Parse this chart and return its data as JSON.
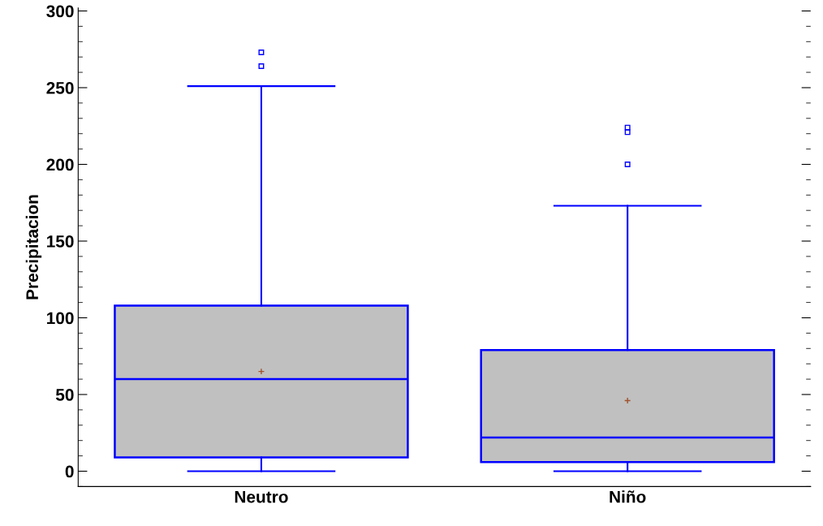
{
  "chart_data": {
    "type": "box",
    "ylabel": "Precipitacion",
    "categories": [
      "Neutro",
      "Niño"
    ],
    "boxes": [
      {
        "low": 0,
        "q1": 9,
        "median": 60,
        "q3": 108,
        "high": 251,
        "mean": 65,
        "outliers": [
          264,
          273
        ]
      },
      {
        "low": 0,
        "q1": 6,
        "median": 22,
        "q3": 79,
        "high": 173,
        "mean": 46,
        "outliers": [
          200,
          221,
          224
        ]
      }
    ],
    "color": "#0000ff",
    "ylim": [
      -10,
      302
    ],
    "yticks": [
      0,
      50,
      100,
      150,
      200,
      250,
      300
    ],
    "grid": false
  }
}
